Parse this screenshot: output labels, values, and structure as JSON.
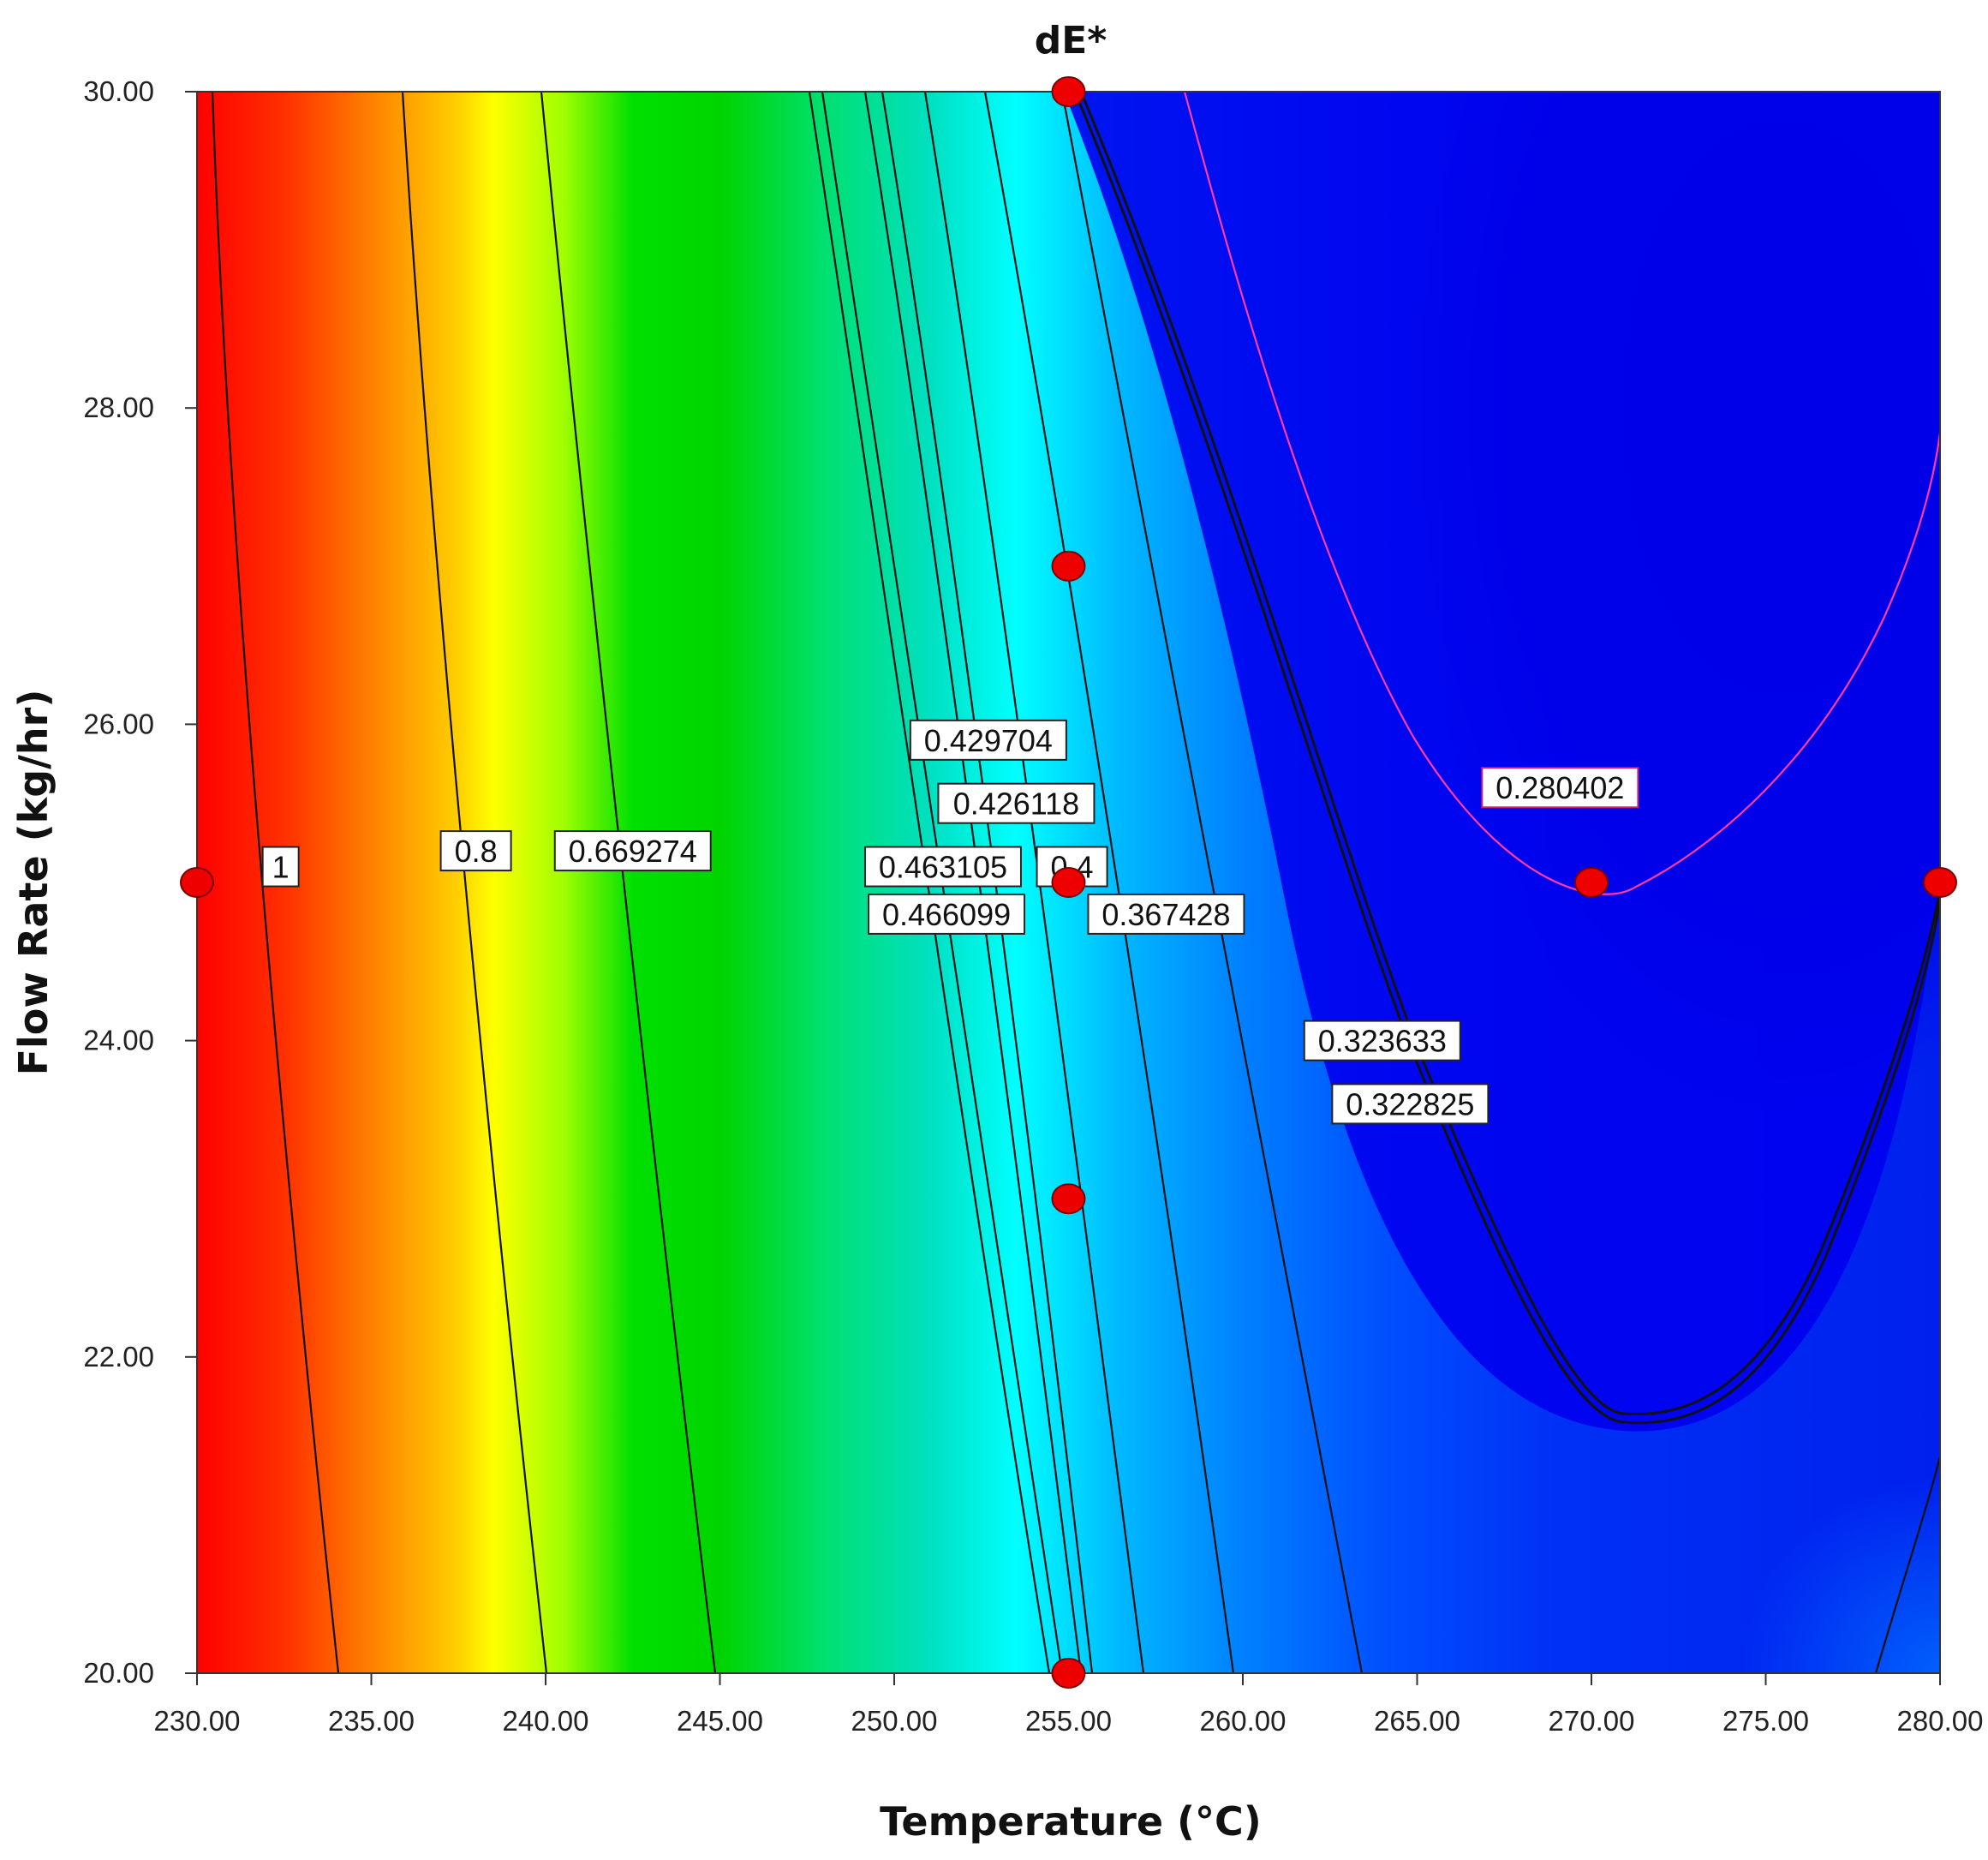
{
  "chart_data": {
    "type": "contour",
    "title": "dE*",
    "xlabel": "Temperature (°C)",
    "ylabel": "Flow Rate (kg/hr)",
    "xlim": [
      230,
      280
    ],
    "ylim": [
      20,
      30
    ],
    "x_ticks": [
      "230.00",
      "235.00",
      "240.00",
      "245.00",
      "250.00",
      "255.00",
      "260.00",
      "265.00",
      "270.00",
      "275.00",
      "280.00"
    ],
    "y_ticks": [
      "20.00",
      "22.00",
      "24.00",
      "26.00",
      "28.00",
      "30.00"
    ],
    "color_map": [
      {
        "value": 1.1,
        "color": "#ff0000"
      },
      {
        "value": 0.95,
        "color": "#ff8000"
      },
      {
        "value": 0.88,
        "color": "#ffff00"
      },
      {
        "value": 0.75,
        "color": "#00dd00"
      },
      {
        "value": 0.6,
        "color": "#00ffff"
      },
      {
        "value": 0.45,
        "color": "#0099ff"
      },
      {
        "value": 0.35,
        "color": "#0044ff"
      },
      {
        "value": 0.28,
        "color": "#0000ee"
      }
    ],
    "contour_labels": [
      {
        "text": "1",
        "x": 232.4,
        "y": 25.1
      },
      {
        "text": "0.8",
        "x": 238.0,
        "y": 25.2
      },
      {
        "text": "0.669274",
        "x": 242.5,
        "y": 25.2
      },
      {
        "text": "0.429704",
        "x": 252.7,
        "y": 25.9
      },
      {
        "text": "0.426118",
        "x": 253.5,
        "y": 25.5
      },
      {
        "text": "0.463105",
        "x": 251.4,
        "y": 25.1
      },
      {
        "text": "0.4",
        "x": 255.1,
        "y": 25.1
      },
      {
        "text": "0.466099",
        "x": 251.5,
        "y": 24.8
      },
      {
        "text": "0.367428",
        "x": 257.8,
        "y": 24.8
      },
      {
        "text": "0.323633",
        "x": 264.0,
        "y": 24.0
      },
      {
        "text": "0.322825",
        "x": 264.8,
        "y": 23.6
      },
      {
        "text": "0.280402",
        "x": 269.1,
        "y": 25.6
      }
    ],
    "design_points": [
      {
        "x": 255,
        "y": 30
      },
      {
        "x": 255,
        "y": 27
      },
      {
        "x": 230,
        "y": 25
      },
      {
        "x": 255,
        "y": 25
      },
      {
        "x": 270,
        "y": 25
      },
      {
        "x": 280,
        "y": 25
      },
      {
        "x": 255,
        "y": 23
      },
      {
        "x": 255,
        "y": 20
      }
    ]
  }
}
